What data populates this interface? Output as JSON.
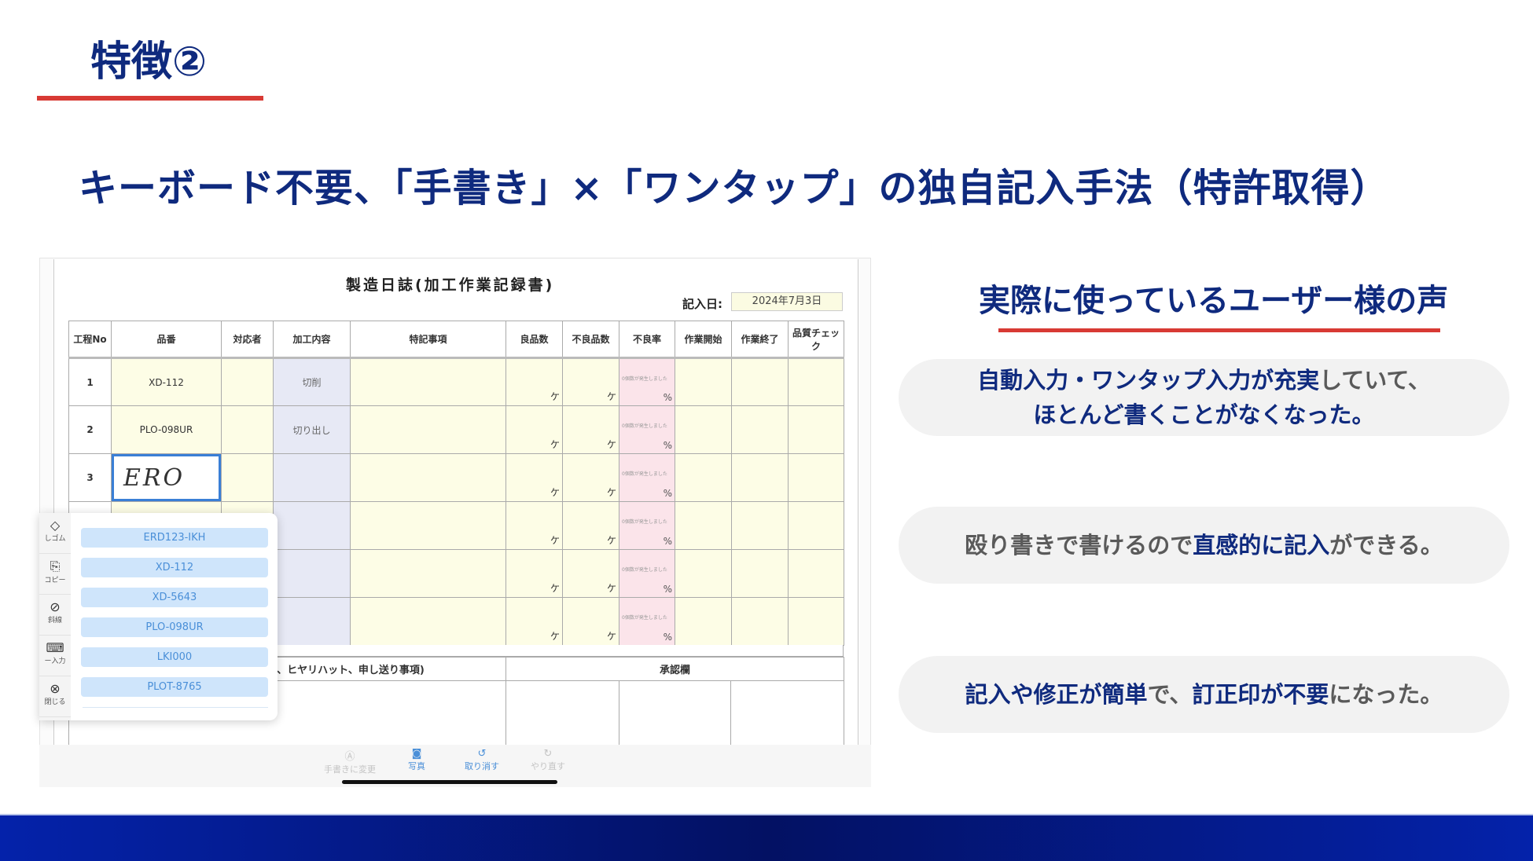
{
  "slide": {
    "feature_label": "特徴②",
    "headline": "キーボード不要、「手書き」×「ワンタップ」の独自記入手法（特許取得）",
    "colors": {
      "navy": "#0f2a7e",
      "accent_red": "#d83a34",
      "gray_text": "#5a5a5a",
      "bubble_bg": "#f2f2f2",
      "footer_gradient": [
        "#0422aa",
        "#031163"
      ]
    }
  },
  "form": {
    "title": "製造日誌(加工作業記録書)",
    "date_label": "記入日:",
    "date_value": "2024年7月3日",
    "columns": [
      "工程No",
      "品番",
      "対応者",
      "加工内容",
      "特記事項",
      "良品数",
      "不良品数",
      "不良率",
      "作業開始",
      "作業終了",
      "品質チェック"
    ],
    "rows": [
      {
        "no": "1",
        "part": "XD-112",
        "process": "切削"
      },
      {
        "no": "2",
        "part": "PLO-098UR",
        "process": "切り出し"
      },
      {
        "no": "3",
        "part": "",
        "handwriting": "ERO",
        "process": ""
      },
      {
        "no": "",
        "part": "",
        "process": ""
      },
      {
        "no": "",
        "part": "",
        "process": ""
      },
      {
        "no": "",
        "part": "",
        "process": ""
      }
    ],
    "unit_piece": "ケ",
    "rate_warning": "0個数が発生しました",
    "rate_unit": "%",
    "notes_header": "する気づき、ヒヤリハット、申し送り事項)",
    "approval_header": "承認欄"
  },
  "popup": {
    "tools": [
      {
        "icon": "eraser-icon",
        "glyph": "◇",
        "label": "しゴム"
      },
      {
        "icon": "copy-icon",
        "glyph": "⎘",
        "label": "コピー"
      },
      {
        "icon": "strike-icon",
        "glyph": "⊘",
        "label": "斜線"
      },
      {
        "icon": "keyboard-icon",
        "glyph": "⌨",
        "label": "ー入力"
      },
      {
        "icon": "close-icon",
        "glyph": "⊗",
        "label": "閉じる"
      }
    ],
    "candidates": [
      "ERD123-IKH",
      "XD-112",
      "XD-5643",
      "PLO-098UR",
      "LKI000",
      "PLOT-8765"
    ]
  },
  "toolbar": [
    {
      "icon": "handwriting-icon",
      "glyph": "Ⓐ",
      "label": "手書きに変更",
      "enabled": false
    },
    {
      "icon": "camera-icon",
      "glyph": "◙",
      "label": "写真",
      "enabled": true
    },
    {
      "icon": "undo-icon",
      "glyph": "↺",
      "label": "取り消す",
      "enabled": true
    },
    {
      "icon": "redo-icon",
      "glyph": "↻",
      "label": "やり直す",
      "enabled": false
    }
  ],
  "voices": {
    "title": "実際に使っているユーザー様の声",
    "bubbles": [
      {
        "lines": [
          [
            {
              "text": "自動入力・ワンタップ入力が充実",
              "em": true
            },
            {
              "text": "していて、",
              "em": false
            }
          ],
          [
            {
              "text": "ほとんど書くことがなくなった。",
              "em": true
            }
          ]
        ]
      },
      {
        "lines": [
          [
            {
              "text": "殴り書きで書けるので",
              "em": false
            },
            {
              "text": "直感的に記入",
              "em": true
            },
            {
              "text": "ができる。",
              "em": false
            }
          ]
        ]
      },
      {
        "lines": [
          [
            {
              "text": "記入や修正が簡単",
              "em": true
            },
            {
              "text": "で、",
              "em": false
            },
            {
              "text": "訂正印が不要",
              "em": true
            },
            {
              "text": "になった。",
              "em": false
            }
          ]
        ]
      }
    ]
  }
}
